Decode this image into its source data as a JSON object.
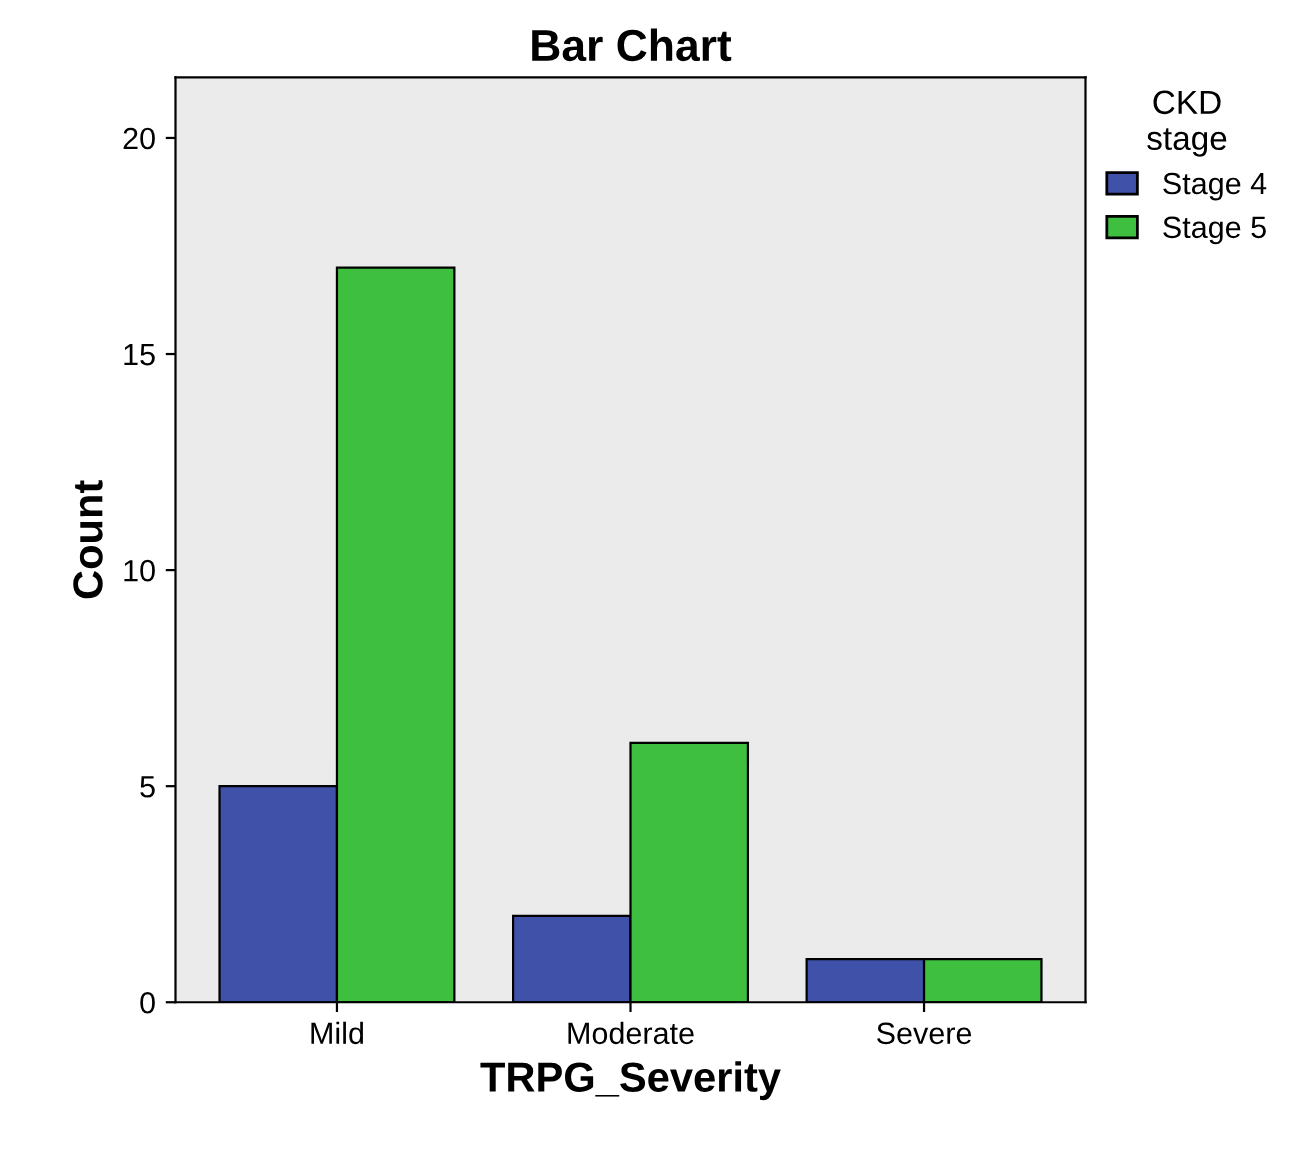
{
  "chart_data": {
    "type": "bar",
    "title": "Bar Chart",
    "xlabel": "TRPG_Severity",
    "ylabel": "Count",
    "legend_title": "CKD\nstage",
    "categories": [
      "Mild",
      "Moderate",
      "Severe"
    ],
    "series": [
      {
        "name": "Stage 4",
        "color": "#3f51a8",
        "values": [
          5,
          2,
          1
        ]
      },
      {
        "name": "Stage 5",
        "color": "#3fbf3f",
        "values": [
          17,
          6,
          1
        ]
      }
    ],
    "ylim": [
      0,
      21.4
    ],
    "yticks": [
      0,
      5,
      10,
      15,
      20
    ],
    "grid": false,
    "legend": "top right"
  }
}
